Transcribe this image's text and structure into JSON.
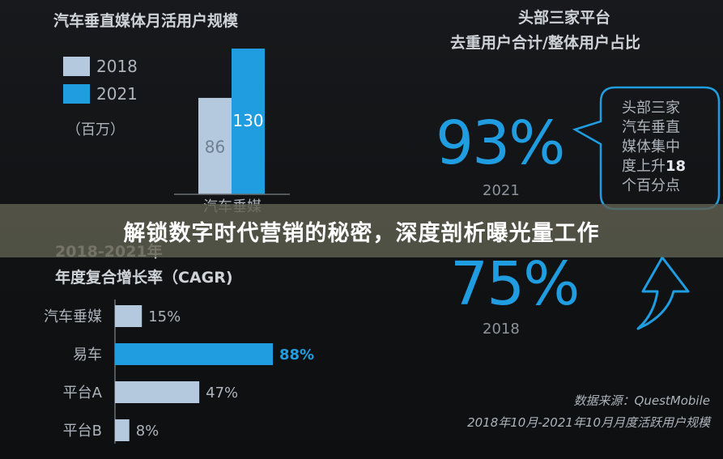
{
  "colors": {
    "color_2018": "#b5c9de",
    "color_2021": "#1f9de0",
    "accent": "#1f9de0",
    "background": "#121416",
    "overlay": "#5f5f50"
  },
  "chart_data": [
    {
      "type": "bar",
      "title": "汽车垂直媒体月活用户规模",
      "legend": [
        "2018",
        "2021"
      ],
      "legend_placement": "top-left",
      "unit_note": "（百万）",
      "categories": [
        "汽车垂媒"
      ],
      "series": [
        {
          "name": "2018",
          "values": [
            86
          ]
        },
        {
          "name": "2021",
          "values": [
            130
          ]
        }
      ]
    },
    {
      "type": "bar",
      "orientation": "horizontal",
      "title_line1": "2018-2021年",
      "title_line2": "年度复合增长率（CAGR)",
      "categories": [
        "汽车垂媒",
        "易车",
        "平台A",
        "平台B"
      ],
      "values": [
        15,
        88,
        47,
        8
      ],
      "value_labels": [
        "15%",
        "88%",
        "47%",
        "8%"
      ],
      "highlight": "易车"
    }
  ],
  "kpi": {
    "title_line1": "头部三家平台",
    "title_line2": "去重用户合计/整体用户占比",
    "items": [
      {
        "value": "93%",
        "year": "2021"
      },
      {
        "value": "75%",
        "year": "2018"
      }
    ],
    "bubble_lines": [
      "头部三家",
      "汽车垂直",
      "媒体集中",
      "度上升",
      "个百分点"
    ],
    "bubble_number": "18"
  },
  "source": {
    "line1": "数据来源：QuestMobile",
    "line2": "2018年10月-2021年10月月度活跃用户规模"
  },
  "overlay_title": "解锁数字时代营销的秘密，深度剖析曝光量工作"
}
